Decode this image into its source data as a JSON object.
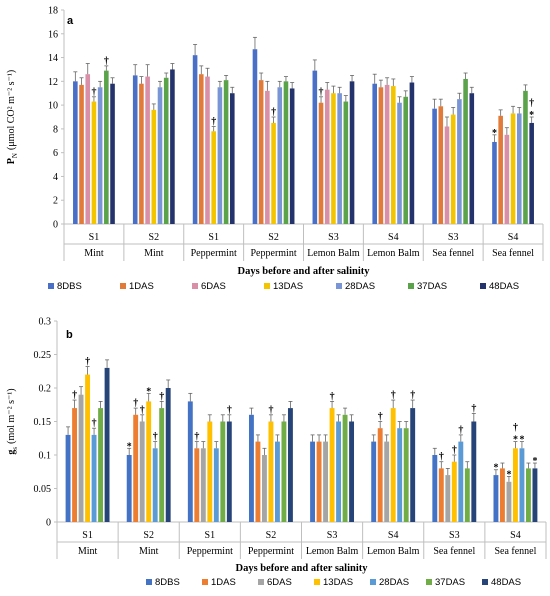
{
  "chart_data": [
    {
      "type": "bar",
      "panel": "a",
      "ylabel_main": "P",
      "ylabel_sub": "N",
      "ylabel_unit": "(μmol CO² m⁻² s⁻¹)",
      "xlabel": "Days before and after salinity",
      "ylim": [
        0,
        18
      ],
      "yticks": [
        0,
        2,
        4,
        6,
        8,
        10,
        12,
        14,
        16,
        18
      ],
      "grid": false,
      "legend_position": "bottom",
      "colors": [
        "#4a6fc7",
        "#e07b39",
        "#d98fa8",
        "#f2c500",
        "#7a95d6",
        "#5aa34b",
        "#24336b"
      ],
      "categories": [
        {
          "top": "S1",
          "bottom": "Mint"
        },
        {
          "top": "S2",
          "bottom": "Mint"
        },
        {
          "top": "S1",
          "bottom": "Peppermint"
        },
        {
          "top": "S2",
          "bottom": "Peppermint"
        },
        {
          "top": "S3",
          "bottom": "Lemon Balm"
        },
        {
          "top": "S4",
          "bottom": "Lemon Balm"
        },
        {
          "top": "S3",
          "bottom": "Sea fennel"
        },
        {
          "top": "S4",
          "bottom": "Sea fennel"
        }
      ],
      "series": [
        {
          "name": "8DBS",
          "values": [
            12.0,
            12.5,
            14.2,
            14.7,
            12.9,
            11.8,
            9.7,
            6.9
          ],
          "errors": [
            0.8,
            0.9,
            0.9,
            1.0,
            0.9,
            0.8,
            0.8,
            0.6
          ]
        },
        {
          "name": "1DAS",
          "values": [
            11.7,
            11.8,
            12.6,
            12.1,
            10.2,
            11.5,
            9.9,
            9.1
          ],
          "errors": [
            0.6,
            0.6,
            0.7,
            0.6,
            0.5,
            0.6,
            0.6,
            0.5
          ]
        },
        {
          "name": "6DAS",
          "values": [
            12.6,
            12.4,
            12.4,
            11.2,
            11.3,
            11.7,
            8.2,
            7.5
          ],
          "errors": [
            0.9,
            1.0,
            0.7,
            0.8,
            0.6,
            0.6,
            0.8,
            0.6
          ]
        },
        {
          "name": "13DAS",
          "values": [
            10.3,
            9.6,
            7.8,
            8.5,
            11.0,
            11.6,
            9.2,
            9.3
          ],
          "errors": [
            0.4,
            0.5,
            0.4,
            0.5,
            0.6,
            0.6,
            0.6,
            0.6
          ]
        },
        {
          "name": "28DAS",
          "values": [
            11.5,
            11.5,
            11.5,
            11.5,
            11.0,
            10.2,
            10.5,
            9.3
          ],
          "errors": [
            0.5,
            0.5,
            0.5,
            0.5,
            0.5,
            0.5,
            0.5,
            0.5
          ]
        },
        {
          "name": "37DAS",
          "values": [
            12.9,
            12.3,
            12.1,
            12.0,
            10.3,
            10.7,
            12.2,
            11.2
          ],
          "errors": [
            0.4,
            0.4,
            0.4,
            0.4,
            0.5,
            0.5,
            0.5,
            0.5
          ]
        },
        {
          "name": "48DAS",
          "values": [
            11.8,
            13.0,
            11.0,
            11.4,
            12.0,
            11.9,
            11.0,
            8.5
          ],
          "errors": [
            0.5,
            0.5,
            0.5,
            0.5,
            0.5,
            0.5,
            0.5,
            0.5
          ]
        }
      ],
      "markers": [
        {
          "category": 0,
          "series": 3,
          "symbol": "†"
        },
        {
          "category": 0,
          "series": 5,
          "symbol": "†"
        },
        {
          "category": 2,
          "series": 3,
          "symbol": "†"
        },
        {
          "category": 3,
          "series": 3,
          "symbol": "†"
        },
        {
          "category": 4,
          "series": 1,
          "symbol": "†"
        },
        {
          "category": 7,
          "series": 0,
          "symbol": "*"
        },
        {
          "category": 7,
          "series": 6,
          "symbol": "*"
        },
        {
          "category": 7,
          "series": 6,
          "symbol": "†"
        }
      ]
    },
    {
      "type": "bar",
      "panel": "b",
      "ylabel_main": "g",
      "ylabel_sub": "s",
      "ylabel_unit": "(mol m⁻² s⁻¹)",
      "xlabel": "Days before and after salinity",
      "ylim": [
        0,
        0.3
      ],
      "yticks": [
        "0",
        "0.05",
        "0.1",
        "0.15",
        "0.2",
        "0.25",
        "0.3"
      ],
      "grid": false,
      "legend_position": "bottom",
      "colors": [
        "#4472c4",
        "#ed7d31",
        "#a5a5a5",
        "#ffc000",
        "#5b9bd5",
        "#70ad47",
        "#264478"
      ],
      "categories": [
        {
          "top": "S1",
          "bottom": "Mint"
        },
        {
          "top": "S2",
          "bottom": "Mint"
        },
        {
          "top": "S1",
          "bottom": "Peppermint"
        },
        {
          "top": "S2",
          "bottom": "Peppermint"
        },
        {
          "top": "S3",
          "bottom": "Lemon Balm"
        },
        {
          "top": "S4",
          "bottom": "Lemon Balm"
        },
        {
          "top": "S3",
          "bottom": "Sea fennel"
        },
        {
          "top": "S4",
          "bottom": "Sea fennel"
        }
      ],
      "series": [
        {
          "name": "8DBS",
          "values": [
            0.13,
            0.1,
            0.18,
            0.16,
            0.12,
            0.12,
            0.1,
            0.07
          ],
          "errors": [
            0.012,
            0.01,
            0.012,
            0.01,
            0.01,
            0.01,
            0.01,
            0.008
          ]
        },
        {
          "name": "1DAS",
          "values": [
            0.17,
            0.16,
            0.11,
            0.12,
            0.12,
            0.14,
            0.08,
            0.08
          ],
          "errors": [
            0.012,
            0.01,
            0.01,
            0.01,
            0.01,
            0.01,
            0.01,
            0.008
          ]
        },
        {
          "name": "6DAS",
          "values": [
            0.19,
            0.15,
            0.11,
            0.1,
            0.12,
            0.12,
            0.07,
            0.06
          ],
          "errors": [
            0.012,
            0.01,
            0.01,
            0.01,
            0.01,
            0.01,
            0.01,
            0.008
          ]
        },
        {
          "name": "13DAS",
          "values": [
            0.22,
            0.18,
            0.15,
            0.15,
            0.17,
            0.17,
            0.09,
            0.11
          ],
          "errors": [
            0.012,
            0.012,
            0.01,
            0.01,
            0.01,
            0.012,
            0.01,
            0.01
          ]
        },
        {
          "name": "28DAS",
          "values": [
            0.13,
            0.11,
            0.11,
            0.12,
            0.15,
            0.14,
            0.12,
            0.11
          ],
          "errors": [
            0.01,
            0.01,
            0.01,
            0.01,
            0.01,
            0.01,
            0.01,
            0.01
          ]
        },
        {
          "name": "37DAS",
          "values": [
            0.17,
            0.17,
            0.15,
            0.15,
            0.16,
            0.14,
            0.08,
            0.08
          ],
          "errors": [
            0.01,
            0.01,
            0.01,
            0.01,
            0.01,
            0.01,
            0.01,
            0.008
          ]
        },
        {
          "name": "48DAS",
          "values": [
            0.23,
            0.2,
            0.15,
            0.17,
            0.15,
            0.17,
            0.15,
            0.08
          ],
          "errors": [
            0.012,
            0.012,
            0.01,
            0.01,
            0.01,
            0.012,
            0.012,
            0.008
          ]
        }
      ],
      "markers": [
        {
          "category": 0,
          "series": 1,
          "symbol": "†"
        },
        {
          "category": 0,
          "series": 3,
          "symbol": "†"
        },
        {
          "category": 0,
          "series": 4,
          "symbol": "†"
        },
        {
          "category": 1,
          "series": 0,
          "symbol": "*"
        },
        {
          "category": 1,
          "series": 1,
          "symbol": "†"
        },
        {
          "category": 1,
          "series": 2,
          "symbol": "†"
        },
        {
          "category": 1,
          "series": 3,
          "symbol": "*"
        },
        {
          "category": 1,
          "series": 4,
          "symbol": "†"
        },
        {
          "category": 1,
          "series": 5,
          "symbol": "†"
        },
        {
          "category": 2,
          "series": 1,
          "symbol": "†"
        },
        {
          "category": 2,
          "series": 6,
          "symbol": "†"
        },
        {
          "category": 3,
          "series": 3,
          "symbol": "†"
        },
        {
          "category": 4,
          "series": 3,
          "symbol": "†"
        },
        {
          "category": 5,
          "series": 1,
          "symbol": "†"
        },
        {
          "category": 5,
          "series": 3,
          "symbol": "†"
        },
        {
          "category": 5,
          "series": 6,
          "symbol": "†"
        },
        {
          "category": 6,
          "series": 1,
          "symbol": "†"
        },
        {
          "category": 6,
          "series": 3,
          "symbol": "†"
        },
        {
          "category": 6,
          "series": 4,
          "symbol": "†"
        },
        {
          "category": 6,
          "series": 6,
          "symbol": "†"
        },
        {
          "category": 7,
          "series": 0,
          "symbol": "*"
        },
        {
          "category": 7,
          "series": 2,
          "symbol": "*"
        },
        {
          "category": 7,
          "series": 3,
          "symbol": "*"
        },
        {
          "category": 7,
          "series": 3,
          "symbol": "†"
        },
        {
          "category": 7,
          "series": 4,
          "symbol": "*"
        },
        {
          "category": 7,
          "series": 6,
          "symbol": "*"
        }
      ]
    }
  ]
}
